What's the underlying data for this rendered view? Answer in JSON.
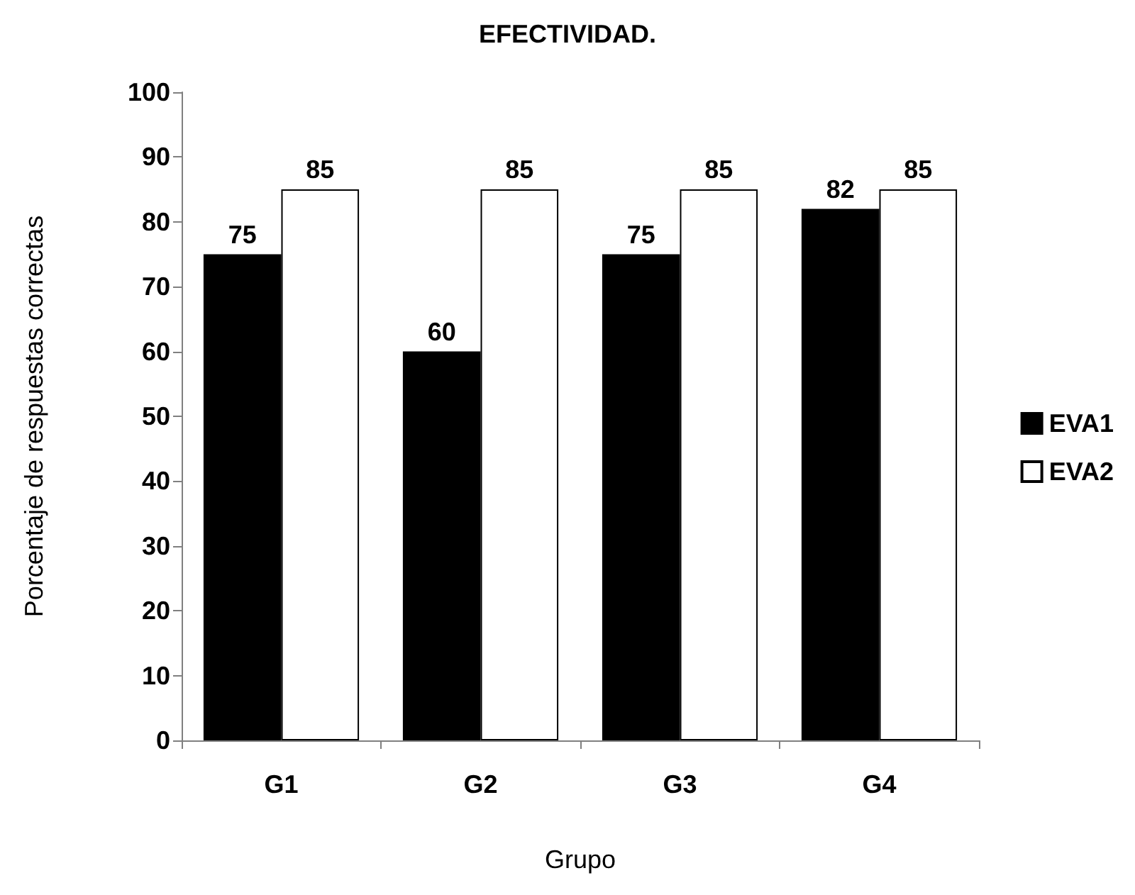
{
  "chart_data": {
    "type": "bar",
    "title": "EFECTIVIDAD.",
    "xlabel": "Grupo",
    "ylabel": "Porcentaje de respuestas correctas",
    "categories": [
      "G1",
      "G2",
      "G3",
      "G4"
    ],
    "series": [
      {
        "name": "EVA1",
        "color": "#000000",
        "values": [
          75,
          60,
          75,
          82
        ]
      },
      {
        "name": "EVA2",
        "color": "#ffffff",
        "values": [
          85,
          85,
          85,
          85
        ]
      }
    ],
    "ylim": [
      0,
      100
    ],
    "yticks": [
      0,
      10,
      20,
      30,
      40,
      50,
      60,
      70,
      80,
      90,
      100
    ],
    "grid": false,
    "legend": "right",
    "data_labels": true
  }
}
